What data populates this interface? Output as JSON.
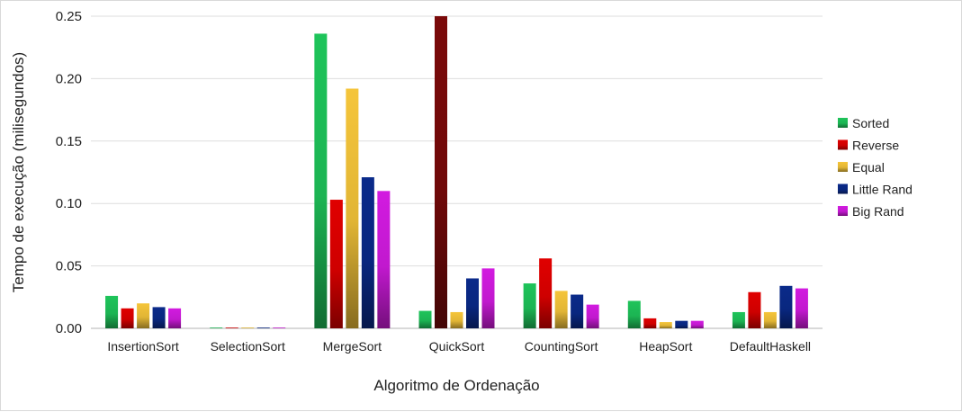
{
  "chart_data": {
    "type": "bar",
    "title": "",
    "xlabel": "Algoritmo de Ordenação",
    "ylabel": "Tempo de execução (milisegundos)",
    "ylim": [
      0,
      0.25
    ],
    "yticks": [
      "0.00",
      "0.05",
      "0.10",
      "0.15",
      "0.20",
      "0.25"
    ],
    "grid": true,
    "legend_position": "right",
    "categories": [
      "InsertionSort",
      "SelectionSort",
      "MergeSort",
      "QuickSort",
      "CountingSort",
      "HeapSort",
      "DefaultHaskell"
    ],
    "series": [
      {
        "name": "Sorted",
        "color": "#1ec45a",
        "values": [
          0.026,
          0.0006,
          0.236,
          0.014,
          0.036,
          0.022,
          0.013
        ]
      },
      {
        "name": "Reverse",
        "color": "#e00000",
        "values": [
          0.016,
          0.0006,
          0.103,
          0.25,
          0.056,
          0.008,
          0.029
        ]
      },
      {
        "name": "Equal",
        "color": "#f5c53a",
        "values": [
          0.02,
          0.0006,
          0.192,
          0.013,
          0.03,
          0.005,
          0.013
        ]
      },
      {
        "name": "Little Rand",
        "color": "#0a2a8a",
        "values": [
          0.017,
          0.0006,
          0.121,
          0.04,
          0.027,
          0.006,
          0.034
        ]
      },
      {
        "name": "Big Rand",
        "color": "#d21be0",
        "values": [
          0.016,
          0.0006,
          0.11,
          0.048,
          0.019,
          0.006,
          0.032
        ]
      }
    ],
    "highlighted_bars": [
      {
        "category": "QuickSort",
        "series": "Reverse",
        "color": "#7a0a0a"
      }
    ]
  }
}
